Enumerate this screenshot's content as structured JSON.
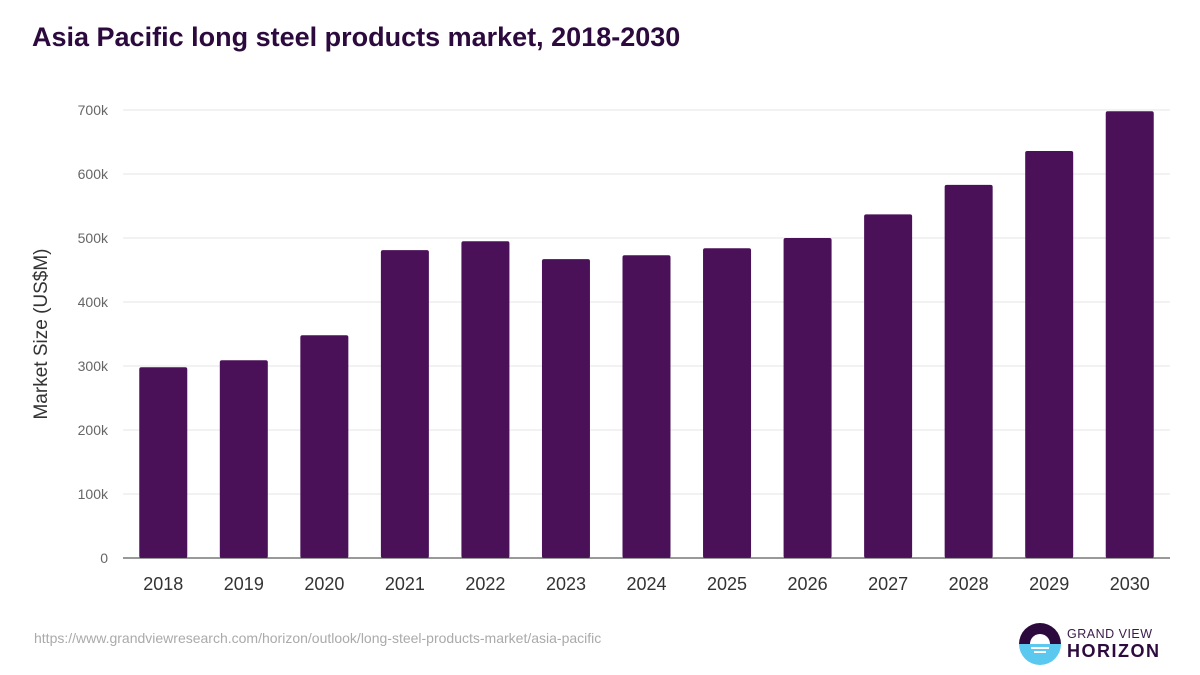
{
  "title": "Asia Pacific long steel products market, 2018-2030",
  "source": "https://www.grandviewresearch.com/horizon/outlook/long-steel-products-market/asia-pacific",
  "logo": {
    "line1": "GRAND VIEW",
    "line2": "HORIZON"
  },
  "colors": {
    "bar": "#4a1158",
    "title": "#2d0a3e",
    "logo_top": "#2d0a3e",
    "logo_bottom": "#5bc8f0"
  },
  "chart_data": {
    "type": "bar",
    "title": "Asia Pacific long steel products market, 2018-2030",
    "xlabel": "",
    "ylabel": "Market Size (US$M)",
    "categories": [
      "2018",
      "2019",
      "2020",
      "2021",
      "2022",
      "2023",
      "2024",
      "2025",
      "2026",
      "2027",
      "2028",
      "2029",
      "2030"
    ],
    "values": [
      298,
      309,
      348,
      481,
      495,
      467,
      473,
      484,
      500,
      537,
      583,
      636,
      698
    ],
    "value_unit": "thousand US$M",
    "ylim": [
      0,
      700
    ],
    "yticks": [
      0,
      100,
      200,
      300,
      400,
      500,
      600,
      700
    ],
    "ytick_labels": [
      "0",
      "100k",
      "200k",
      "300k",
      "400k",
      "500k",
      "600k",
      "700k"
    ],
    "grid": true,
    "legend": "none"
  }
}
